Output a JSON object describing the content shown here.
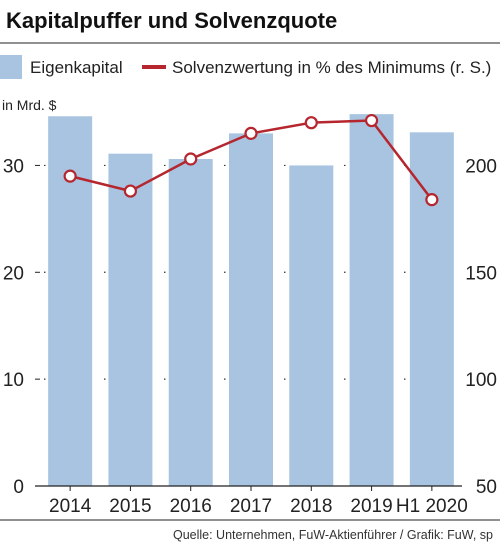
{
  "chart_data": {
    "type": "bar+line",
    "title": "Kapitalpuffer und Solvenzquote",
    "unit_label": "in Mrd. $",
    "categories": [
      "2014",
      "2015",
      "2016",
      "2017",
      "2018",
      "2019",
      "H1 2020"
    ],
    "bar_series": {
      "name": "Eigenkapital",
      "values": [
        34.6,
        31.1,
        30.6,
        33.0,
        30.0,
        34.8,
        33.1
      ],
      "color": "#a9c4e0",
      "axis": "left"
    },
    "line_series": {
      "name": "Solvenzwertung in % des Minimums (r. S.)",
      "values": [
        195,
        188,
        203,
        215,
        220,
        221,
        184
      ],
      "color": "#b5262e",
      "axis": "right"
    },
    "y_left": {
      "min": 0,
      "max": 35,
      "ticks": [
        0,
        10,
        20,
        30
      ]
    },
    "y_right": {
      "min": 50,
      "max": 225,
      "ticks": [
        50,
        100,
        150,
        200
      ]
    },
    "grid": "dotted-horizontal",
    "legend_position": "top",
    "source": "Quelle: Unternehmen, FuW-Aktienführer / Grafik: FuW, sp"
  }
}
